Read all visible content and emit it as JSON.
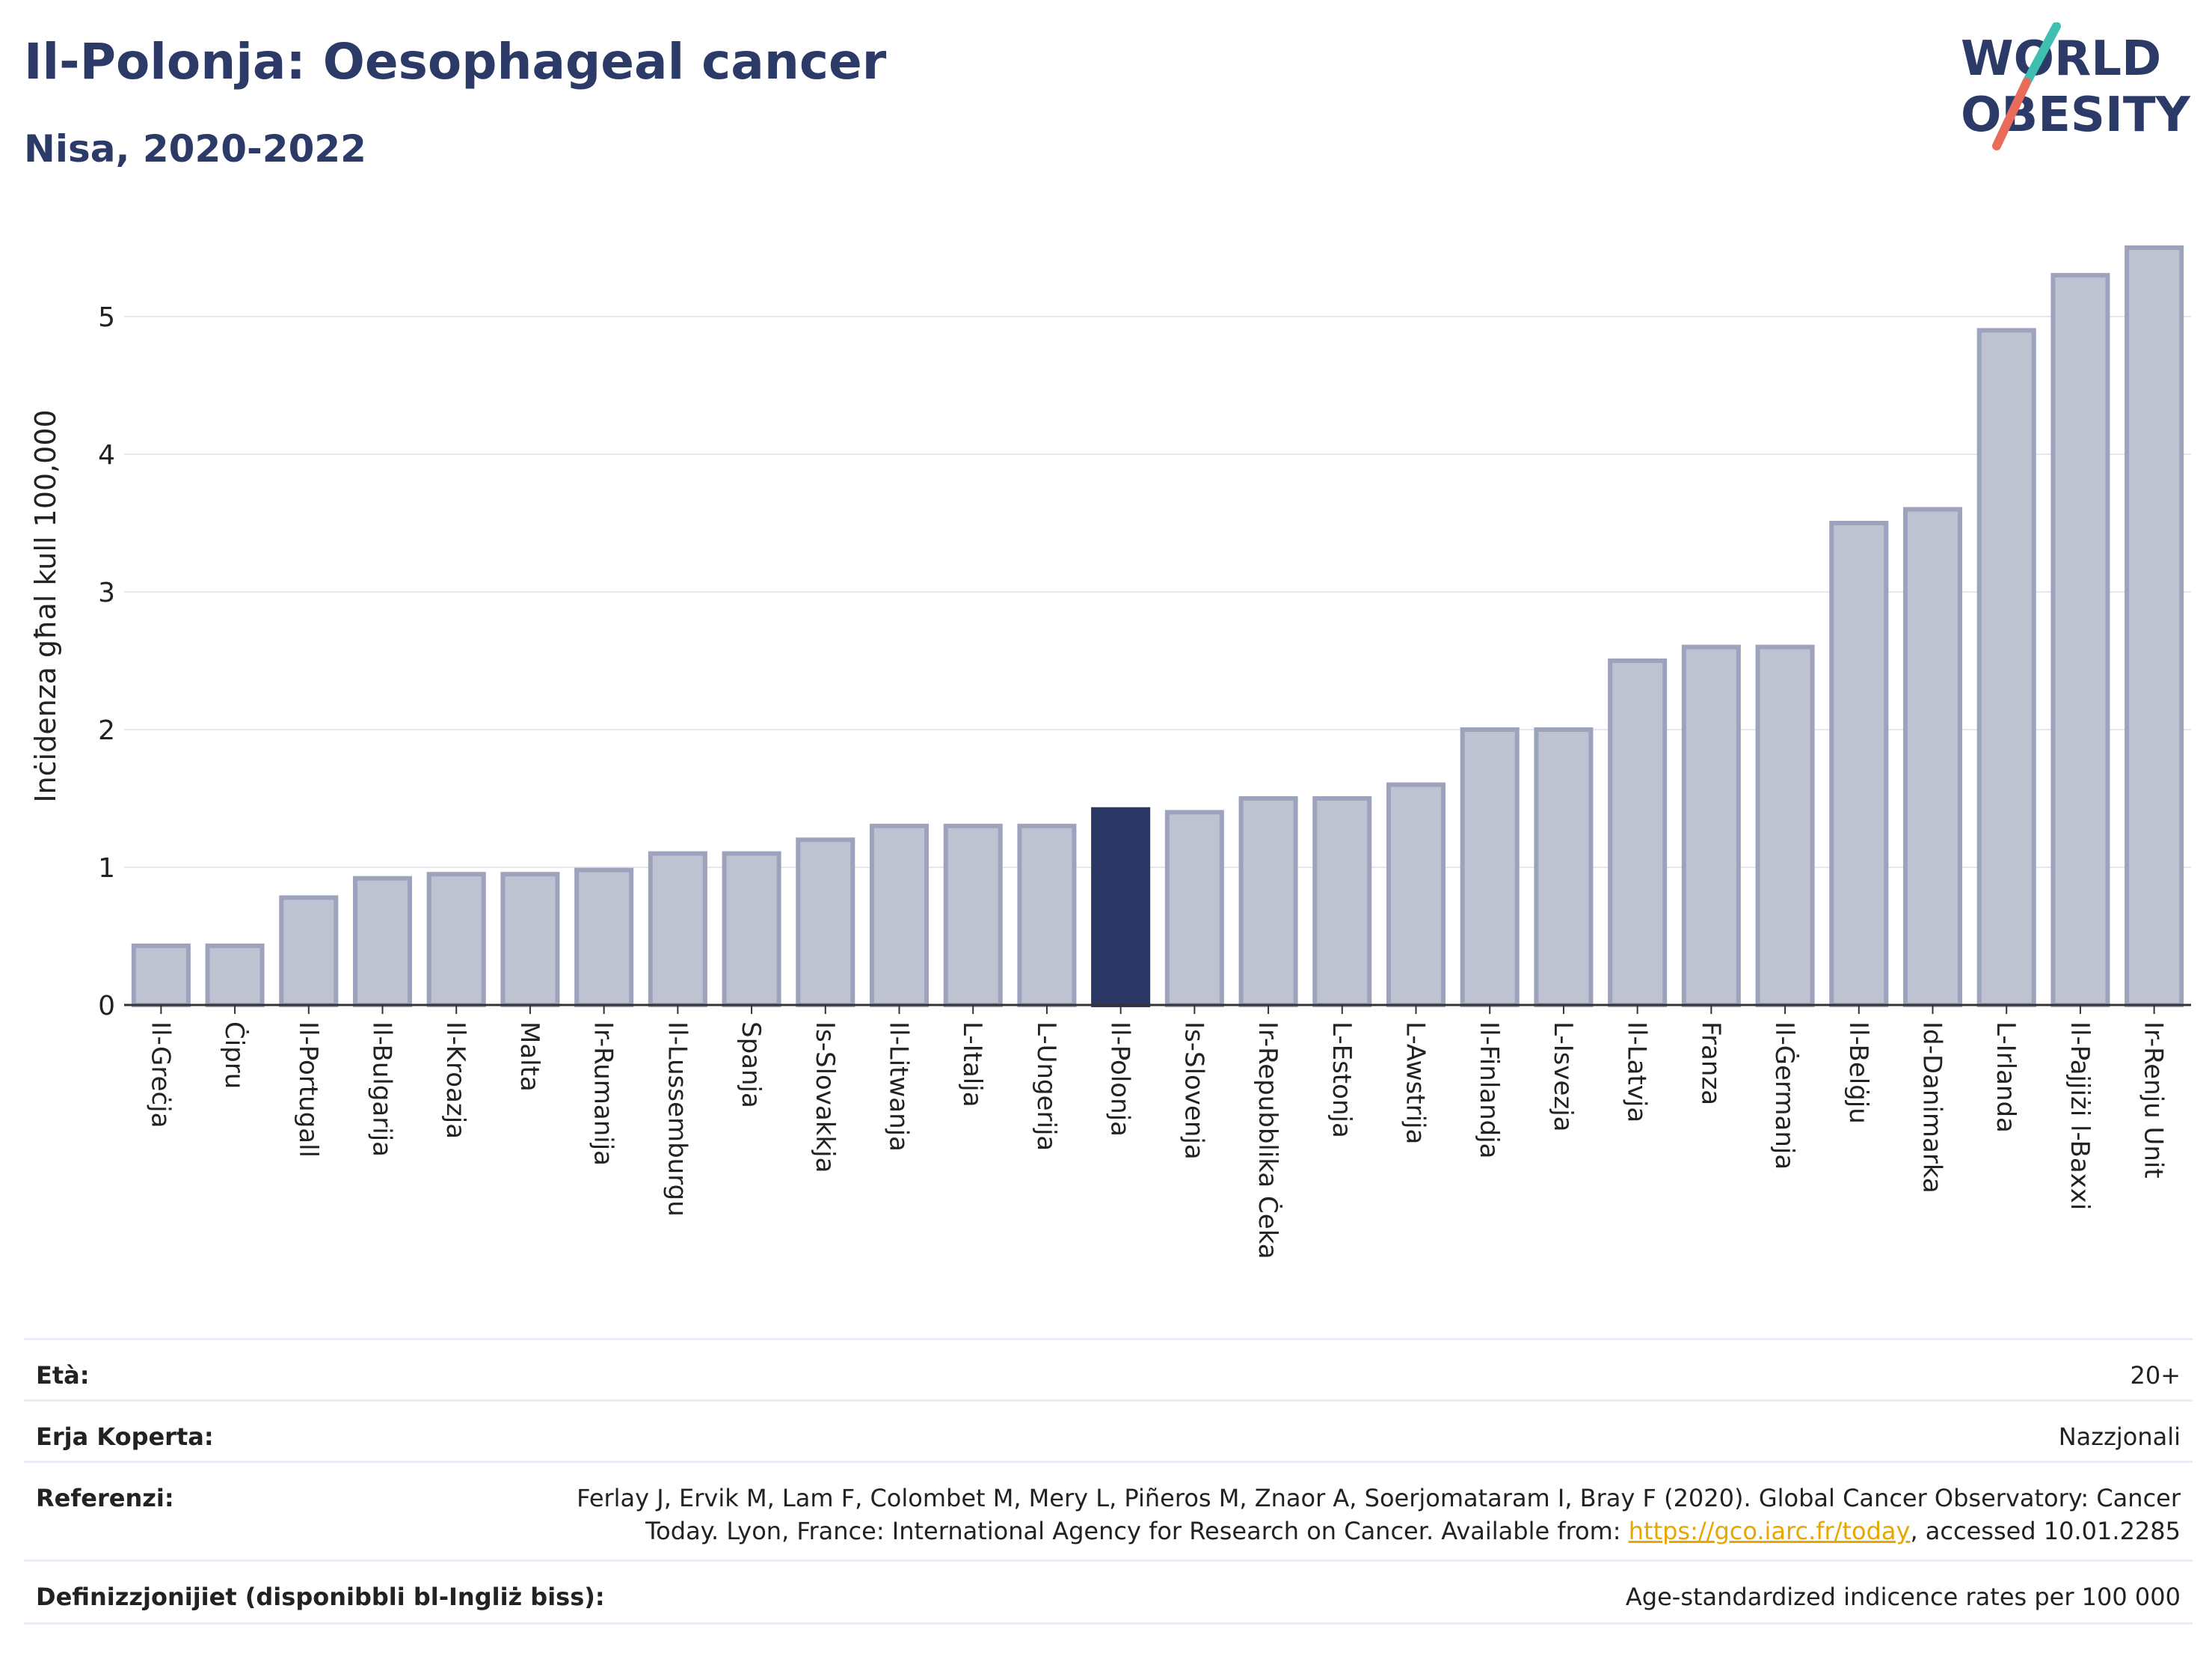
{
  "title": "Il-Polonja: Oesophageal cancer",
  "subtitle": "Nisa, 2020-2022",
  "logo": {
    "line1": "WORLD",
    "line2": "OBESITY"
  },
  "colors": {
    "highlight": "#2b3764",
    "bar_fill": "#bfc2d0",
    "bar_stroke": "#9ea3bd",
    "title": "#2b3a67"
  },
  "chart_data": {
    "type": "bar",
    "ylabel": "Inċidenza għal kull 100,000",
    "xlabel": "",
    "ylim": [
      0,
      5.6
    ],
    "yticks": [
      0,
      1,
      2,
      3,
      4,
      5
    ],
    "grid": true,
    "highlight": "Il-Polonja",
    "categories": [
      "Il-Greċja",
      "Ċipru",
      "Il-Portugall",
      "Il-Bulgarija",
      "Il-Kroazja",
      "Malta",
      "Ir-Rumanija",
      "Il-Lussemburgu",
      "Spanja",
      "Is-Slovakkja",
      "Il-Litwanja",
      "L-Italja",
      "L-Ungerija",
      "Il-Polonja",
      "Is-Slovenja",
      "Ir-Repubblika Ċeka",
      "L-Estonja",
      "L-Awstrija",
      "Il-Finlandja",
      "L-Isvezja",
      "Il-Latvja",
      "Franza",
      "Il-Ġermanja",
      "Il-Belġju",
      "Id-Danimarka",
      "L-Irlanda",
      "Il-Pajjiżi l-Baxxi",
      "Ir-Renju Unit"
    ],
    "values": [
      0.43,
      0.43,
      0.78,
      0.92,
      0.95,
      0.95,
      0.98,
      1.1,
      1.1,
      1.2,
      1.3,
      1.3,
      1.3,
      1.42,
      1.4,
      1.5,
      1.5,
      1.6,
      2.0,
      2.0,
      2.5,
      2.6,
      2.6,
      3.5,
      3.6,
      4.9,
      5.3,
      5.5
    ]
  },
  "meta": {
    "age_label": "Età:",
    "age_value": "20+",
    "area_label": "Erja Koperta:",
    "area_value": "Nazzjonali",
    "ref_label": "Referenzi:",
    "ref_line1": "Ferlay J, Ervik M, Lam F, Colombet M, Mery L, Piñeros M, Znaor A, Soerjomataram I, Bray F (2020). Global Cancer Observatory: Cancer",
    "ref_line2_pre": "Today. Lyon, France: International Agency for Research on Cancer. Available from: ",
    "ref_link": "https://gco.iarc.fr/today",
    "ref_line2_post": ", accessed 10.01.2285",
    "def_label": "Definizzjonijiet (disponibbli bl-Ingliż biss):",
    "def_value": "Age-standardized indicence rates per 100 000"
  }
}
